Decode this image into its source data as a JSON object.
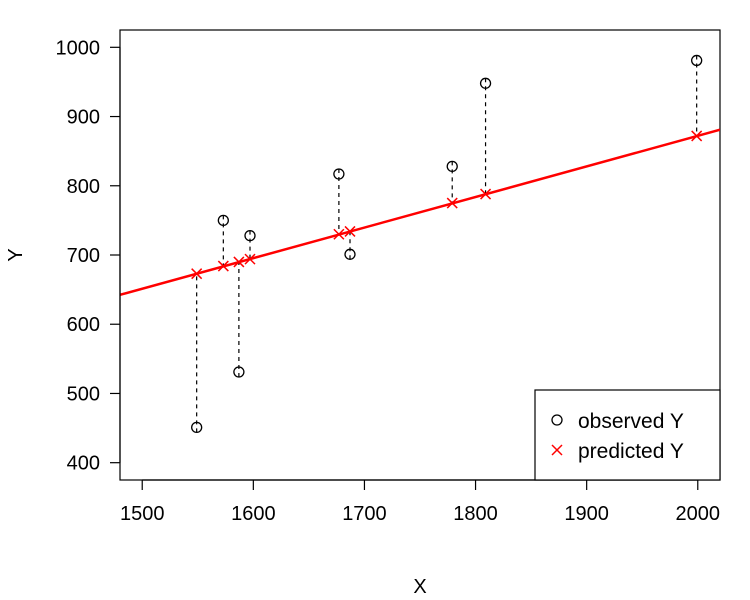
{
  "chart_data": {
    "type": "scatter",
    "xlabel": "X",
    "ylabel": "Y",
    "xlim": [
      1480,
      2020
    ],
    "ylim": [
      375,
      1025
    ],
    "x_ticks": [
      1500,
      1600,
      1700,
      1800,
      1900,
      2000
    ],
    "y_ticks": [
      400,
      500,
      600,
      700,
      800,
      900,
      1000
    ],
    "grid": false,
    "legend_position": "bottom-right",
    "regression_line": {
      "intercept": -11.27,
      "slope": 0.4417,
      "color": "#ff0000"
    },
    "series": [
      {
        "name": "observed Y",
        "marker": "circle",
        "color": "#000000",
        "x": [
          1549,
          1573,
          1587,
          1597,
          1677,
          1687,
          1779,
          1809,
          1999
        ],
        "y": [
          451,
          750,
          531,
          728,
          817,
          701,
          828,
          948,
          981
        ]
      },
      {
        "name": "predicted Y",
        "marker": "x",
        "color": "#ff0000",
        "x": [
          1549,
          1573,
          1587,
          1597,
          1677,
          1687,
          1779,
          1809,
          1999
        ],
        "y": [
          673,
          684,
          690,
          694,
          730,
          734,
          775,
          788,
          872
        ]
      }
    ]
  }
}
